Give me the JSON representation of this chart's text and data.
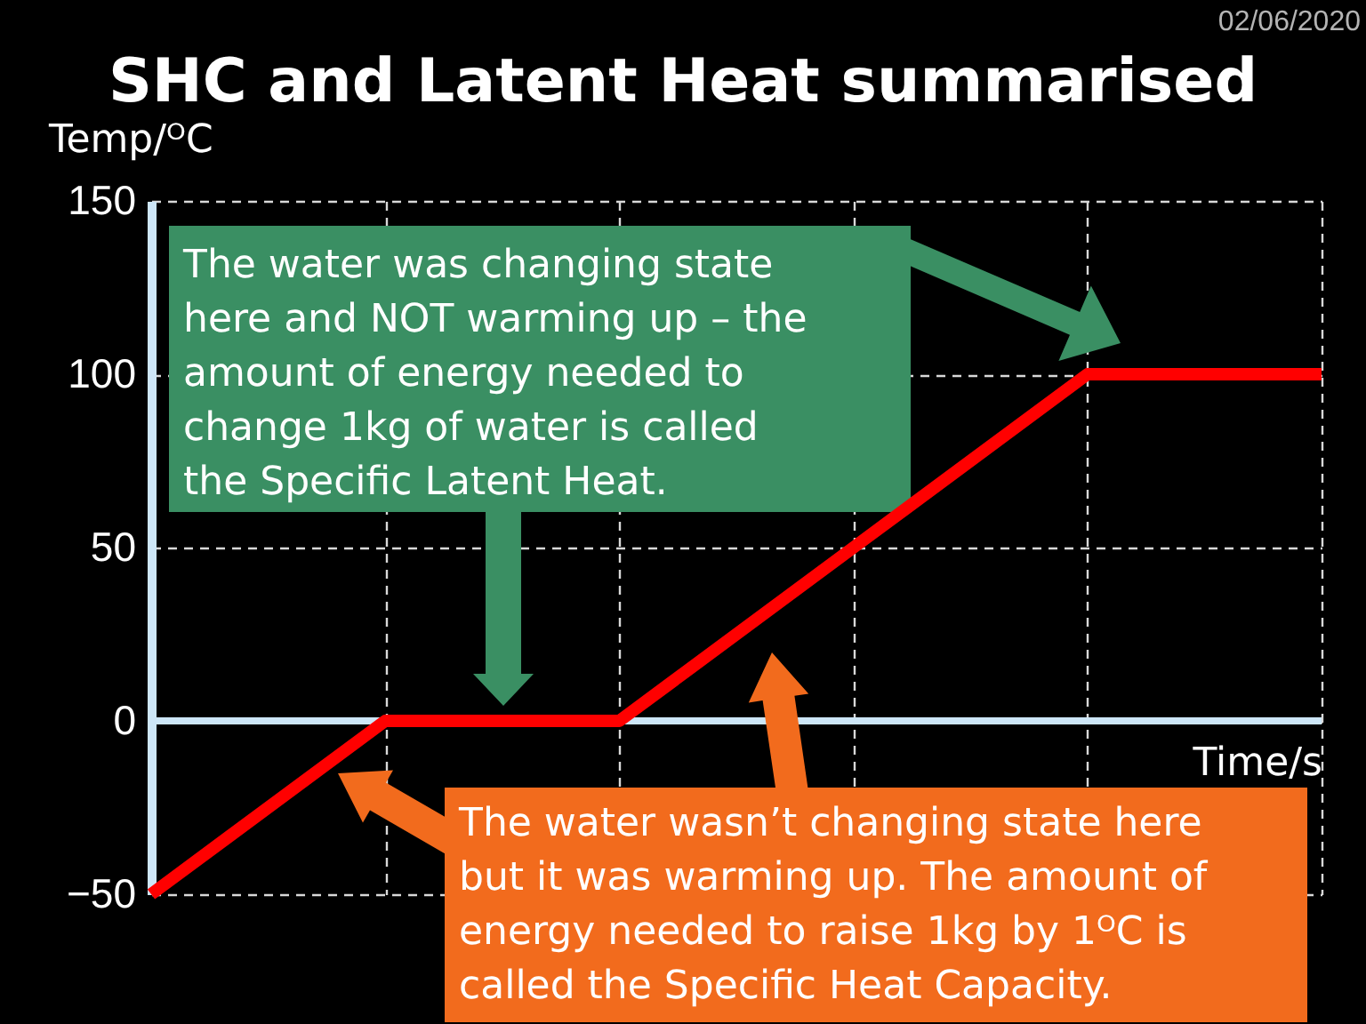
{
  "chart_data": {
    "type": "line",
    "title": "SHC and Latent Heat summarised",
    "xlabel": "Time/s",
    "ylabel": "Temp/ᴼC",
    "categories": [
      null,
      null,
      null,
      null,
      null,
      null
    ],
    "values": [
      -50,
      0,
      0,
      50,
      100,
      100
    ],
    "color": "#ff0000",
    "ylim": [
      -50,
      150
    ],
    "yticks": [
      -50,
      0,
      50,
      100,
      150
    ],
    "grid": true,
    "ref_lines": [
      {
        "axis": "y",
        "value": 0,
        "color": "#cde6f7"
      }
    ],
    "annotations": [
      "02/06/2020",
      "The water was changing state here and NOT warming up – the amount of energy needed to change 1kg of water is called the Specific Latent Heat.",
      "The water wasn’t changing state here but it was warming up. The amount of energy needed to raise 1kg by 1ᴼC is called the Specific Heat Capacity."
    ]
  }
}
